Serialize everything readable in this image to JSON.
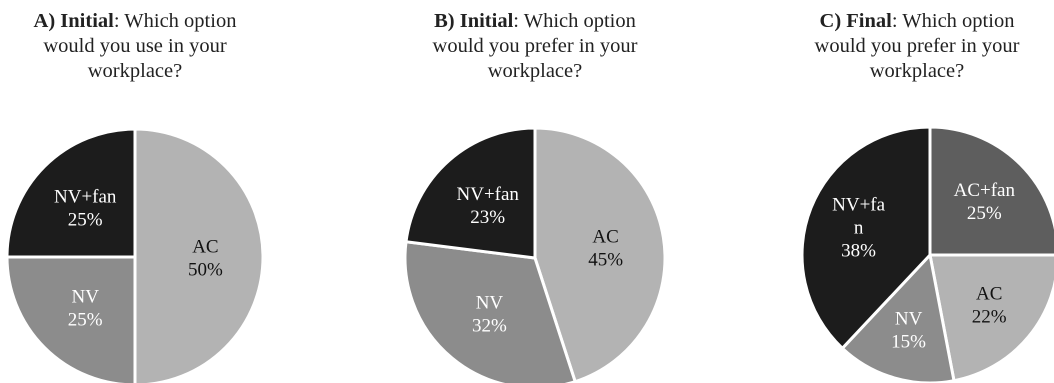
{
  "chart_data": [
    {
      "type": "pie",
      "title_prefix": "A) Initial",
      "title_rest": ": Which option",
      "title_line2": "would you use in your",
      "title_line3": "workplace?",
      "slices": [
        {
          "label_lines": [
            "AC"
          ],
          "value": 50,
          "value_text": "50%",
          "color": "#b3b3b3",
          "text_color": "#111111"
        },
        {
          "label_lines": [
            "NV"
          ],
          "value": 25,
          "value_text": "25%",
          "color": "#8c8c8c",
          "text_color": "#ffffff"
        },
        {
          "label_lines": [
            "NV+fan"
          ],
          "value": 25,
          "value_text": "25%",
          "color": "#1c1c1c",
          "text_color": "#ffffff"
        }
      ]
    },
    {
      "type": "pie",
      "title_prefix": "B) Initial",
      "title_rest": ": Which option",
      "title_line2": "would you prefer in your",
      "title_line3": "workplace?",
      "slices": [
        {
          "label_lines": [
            "AC"
          ],
          "value": 45,
          "value_text": "45%",
          "color": "#b3b3b3",
          "text_color": "#111111"
        },
        {
          "label_lines": [
            "NV"
          ],
          "value": 32,
          "value_text": "32%",
          "color": "#8c8c8c",
          "text_color": "#ffffff"
        },
        {
          "label_lines": [
            "NV+fan"
          ],
          "value": 23,
          "value_text": "23%",
          "color": "#1c1c1c",
          "text_color": "#ffffff"
        }
      ]
    },
    {
      "type": "pie",
      "title_prefix": "C) Final",
      "title_rest": ": Which option",
      "title_line2": "would you prefer in your",
      "title_line3": "workplace?",
      "slices": [
        {
          "label_lines": [
            "AC+fan"
          ],
          "value": 25,
          "value_text": "25%",
          "color": "#5e5e5e",
          "text_color": "#ffffff"
        },
        {
          "label_lines": [
            "AC"
          ],
          "value": 22,
          "value_text": "22%",
          "color": "#b3b3b3",
          "text_color": "#111111"
        },
        {
          "label_lines": [
            "NV"
          ],
          "value": 15,
          "value_text": "15%",
          "color": "#8c8c8c",
          "text_color": "#ffffff"
        },
        {
          "label_lines": [
            "NV+fa",
            "n"
          ],
          "value": 38,
          "value_text": "38%",
          "color": "#1c1c1c",
          "text_color": "#ffffff"
        }
      ]
    }
  ]
}
